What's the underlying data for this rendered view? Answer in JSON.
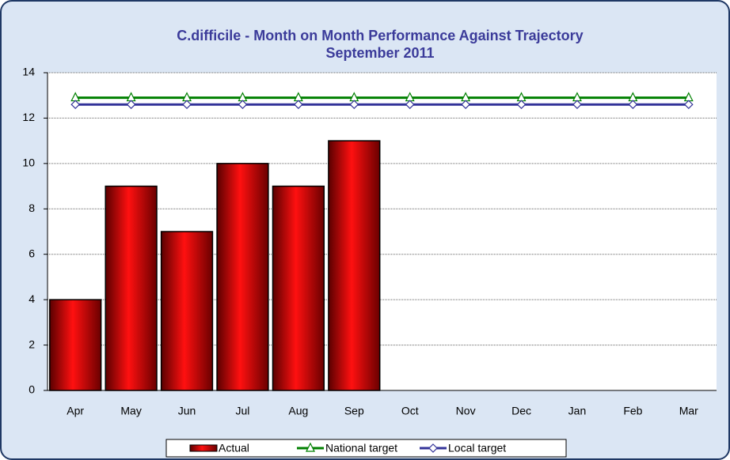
{
  "chart_data": {
    "type": "bar",
    "title": "C.difficile - Month on Month Performance Against Trajectory",
    "subtitle": "September 2011",
    "categories": [
      "Apr",
      "May",
      "Jun",
      "Jul",
      "Aug",
      "Sep",
      "Oct",
      "Nov",
      "Dec",
      "Jan",
      "Feb",
      "Mar"
    ],
    "series": [
      {
        "name": "Actual",
        "type": "bar",
        "color": "#cc0000",
        "values": [
          4,
          9,
          7,
          10,
          9,
          11,
          null,
          null,
          null,
          null,
          null,
          null
        ]
      },
      {
        "name": "National target",
        "type": "line",
        "marker": "triangle",
        "color": "#008000",
        "values": [
          12.9,
          12.9,
          12.9,
          12.9,
          12.9,
          12.9,
          12.9,
          12.9,
          12.9,
          12.9,
          12.9,
          12.9
        ]
      },
      {
        "name": "Local target",
        "type": "line",
        "marker": "diamond",
        "color": "#333399",
        "values": [
          12.6,
          12.6,
          12.6,
          12.6,
          12.6,
          12.6,
          12.6,
          12.6,
          12.6,
          12.6,
          12.6,
          12.6
        ]
      }
    ],
    "ylim": [
      0,
      14
    ],
    "yticks": [
      0,
      2,
      4,
      6,
      8,
      10,
      12,
      14
    ],
    "grid": true,
    "legend": "bottom"
  }
}
